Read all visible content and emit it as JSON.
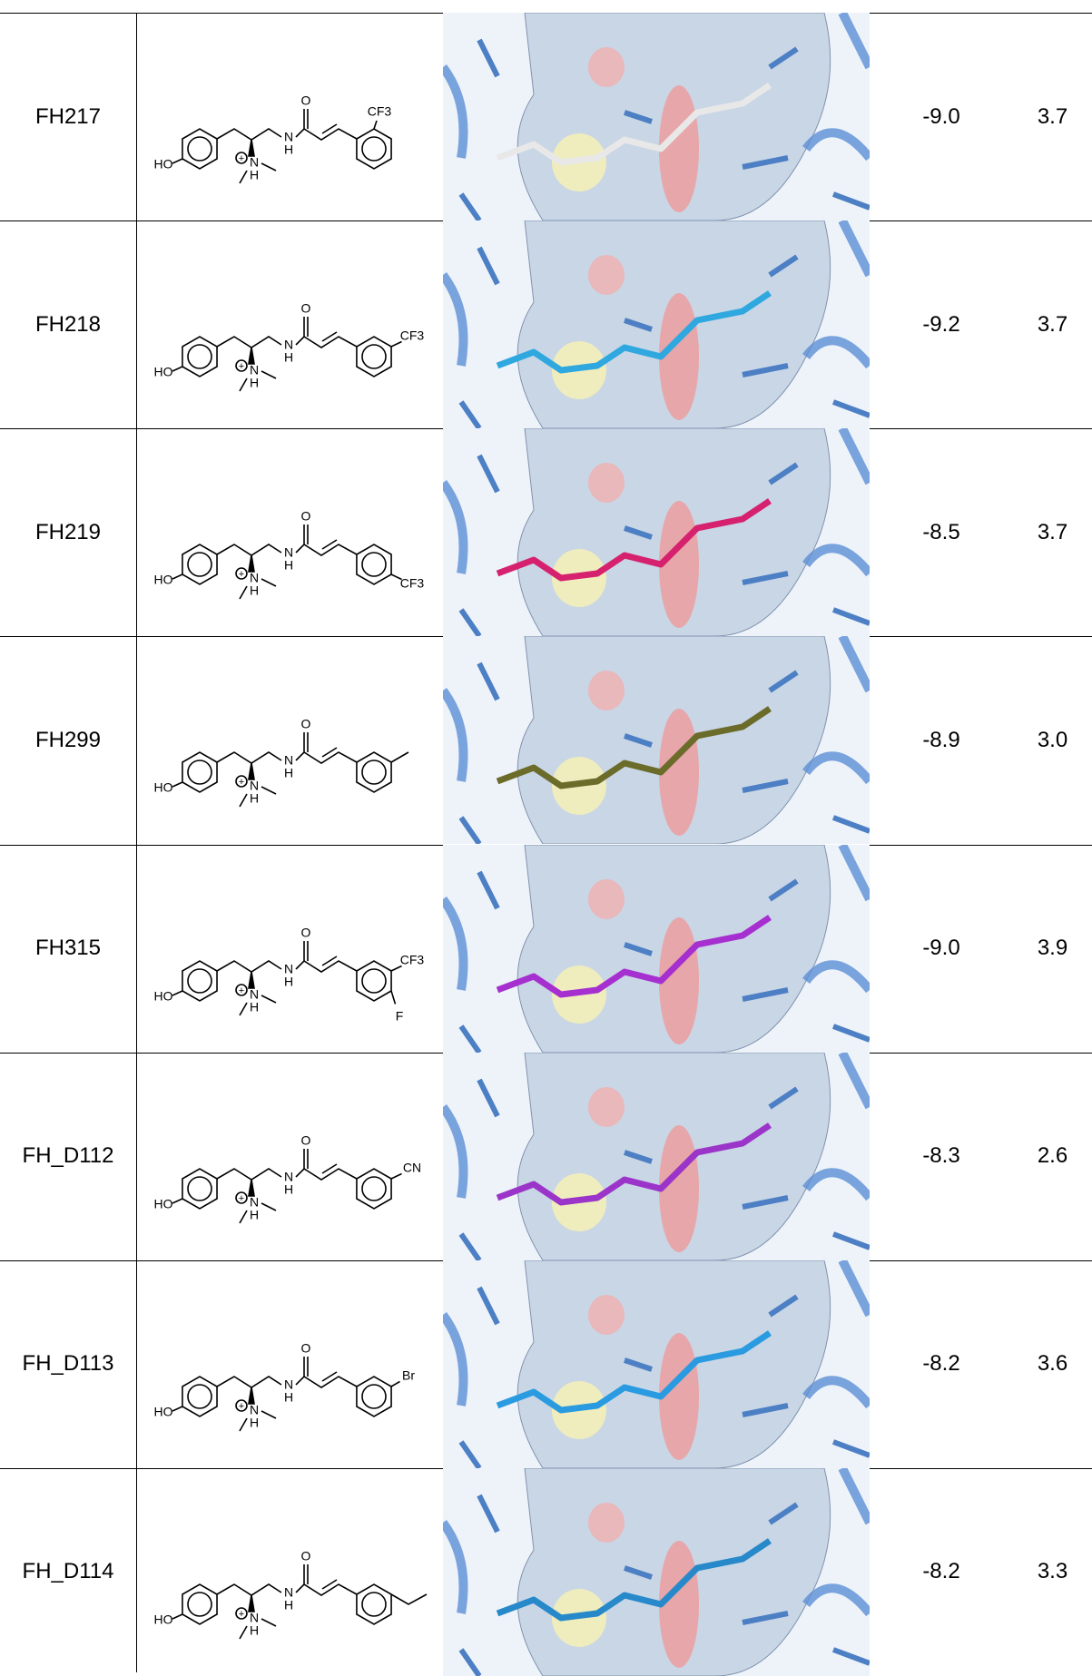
{
  "table": {
    "rows": [
      {
        "name": "FH217",
        "structure": {
          "hydroxyl": "HO",
          "amine_n": "N",
          "amine_h": "H",
          "amide_n": "N",
          "amide_h": "H",
          "carbonyl": "O",
          "substituents": [
            "CF3"
          ]
        },
        "score": "-9.0",
        "value": "3.7",
        "ligand_color": "#e8e8e8"
      },
      {
        "name": "FH218",
        "structure": {
          "hydroxyl": "HO",
          "amine_n": "N",
          "amine_h": "H",
          "amide_n": "N",
          "amide_h": "H",
          "carbonyl": "O",
          "substituents": [
            "CF3"
          ]
        },
        "score": "-9.2",
        "value": "3.7",
        "ligand_color": "#2fa8e0"
      },
      {
        "name": "FH219",
        "structure": {
          "hydroxyl": "HO",
          "amine_n": "N",
          "amine_h": "H",
          "amide_n": "N",
          "amide_h": "H",
          "carbonyl": "O",
          "substituents": [
            "CF3"
          ]
        },
        "score": "-8.5",
        "value": "3.7",
        "ligand_color": "#d6216e"
      },
      {
        "name": "FH299",
        "structure": {
          "hydroxyl": "HO",
          "amine_n": "N",
          "amine_h": "H",
          "amide_n": "N",
          "amide_h": "H",
          "carbonyl": "O",
          "substituents": []
        },
        "score": "-8.9",
        "value": "3.0",
        "ligand_color": "#6b6b2a"
      },
      {
        "name": "FH315",
        "structure": {
          "hydroxyl": "HO",
          "amine_n": "N",
          "amine_h": "H",
          "amide_n": "N",
          "amide_h": "H",
          "carbonyl": "O",
          "substituents": [
            "CF3",
            "F"
          ]
        },
        "score": "-9.0",
        "value": "3.9",
        "ligand_color": "#a62fd0"
      },
      {
        "name": "FH_D112",
        "structure": {
          "hydroxyl": "HO",
          "amine_n": "N",
          "amine_h": "H",
          "amide_n": "N",
          "amide_h": "H",
          "carbonyl": "O",
          "substituents": [
            "CN"
          ]
        },
        "score": "-8.3",
        "value": "2.6",
        "ligand_color": "#9b35c9"
      },
      {
        "name": "FH_D113",
        "structure": {
          "hydroxyl": "HO",
          "amine_n": "N",
          "amine_h": "H",
          "amide_n": "N",
          "amide_h": "H",
          "carbonyl": "O",
          "substituents": [
            "Br"
          ]
        },
        "score": "-8.2",
        "value": "3.6",
        "ligand_color": "#2a9be0"
      },
      {
        "name": "FH_D114",
        "structure": {
          "hydroxyl": "HO",
          "amine_n": "N",
          "amine_h": "H",
          "amide_n": "N",
          "amide_h": "H",
          "carbonyl": "O",
          "substituents": []
        },
        "score": "-8.2",
        "value": "3.3",
        "ligand_color": "#2789c9"
      }
    ]
  }
}
